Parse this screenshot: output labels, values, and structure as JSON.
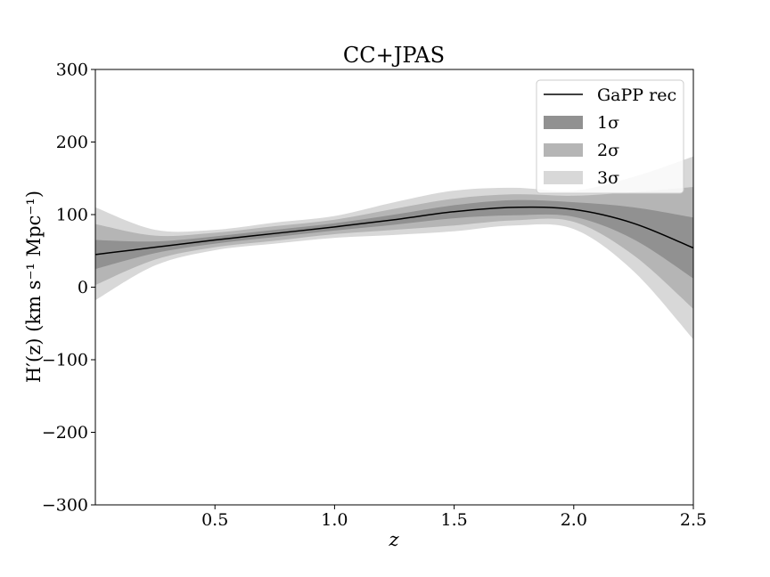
{
  "chart_data": {
    "type": "area",
    "title": "CC+JPAS",
    "xlabel": "z",
    "ylabel": "H′(z) (km s⁻¹ Mpc⁻¹)",
    "xlim": [
      0.0,
      2.5
    ],
    "ylim": [
      -300,
      300
    ],
    "xticks": [
      0.5,
      1.0,
      1.5,
      2.0,
      2.5
    ],
    "xtick_labels": [
      "0.5",
      "1.0",
      "1.5",
      "2.0",
      "2.5"
    ],
    "yticks": [
      -300,
      -200,
      -100,
      0,
      100,
      200,
      300
    ],
    "ytick_labels": [
      "−300",
      "−200",
      "−100",
      "0",
      "100",
      "200",
      "300"
    ],
    "grid": false,
    "legend_position": "top-right",
    "x": [
      0.0,
      0.25,
      0.5,
      0.75,
      1.0,
      1.25,
      1.5,
      1.75,
      2.0,
      2.25,
      2.5
    ],
    "series": [
      {
        "name": "GaPP rec",
        "kind": "line",
        "color": "#000000",
        "values": [
          45,
          55,
          65,
          74,
          83,
          93,
          104,
          110,
          107,
          88,
          54
        ]
      },
      {
        "name": "1σ",
        "kind": "band",
        "color": "#919191",
        "lower": [
          25,
          47,
          60,
          69,
          78,
          86,
          95,
          99,
          97,
          66,
          12
        ],
        "upper": [
          65,
          63,
          70,
          79,
          88,
          100,
          113,
          120,
          117,
          110,
          96
        ]
      },
      {
        "name": "2σ",
        "kind": "band",
        "color": "#b5b5b5",
        "lower": [
          3,
          38,
          55,
          64,
          73,
          79,
          85,
          92,
          90,
          44,
          -30
        ],
        "upper": [
          87,
          71,
          75,
          84,
          93,
          108,
          122,
          128,
          126,
          131,
          138
        ]
      },
      {
        "name": "3σ",
        "kind": "band",
        "color": "#d8d8d8",
        "lower": [
          -18,
          30,
          51,
          60,
          68,
          72,
          77,
          85,
          80,
          22,
          -72
        ],
        "upper": [
          110,
          79,
          79,
          89,
          98,
          117,
          133,
          137,
          133,
          152,
          180
        ]
      }
    ]
  }
}
